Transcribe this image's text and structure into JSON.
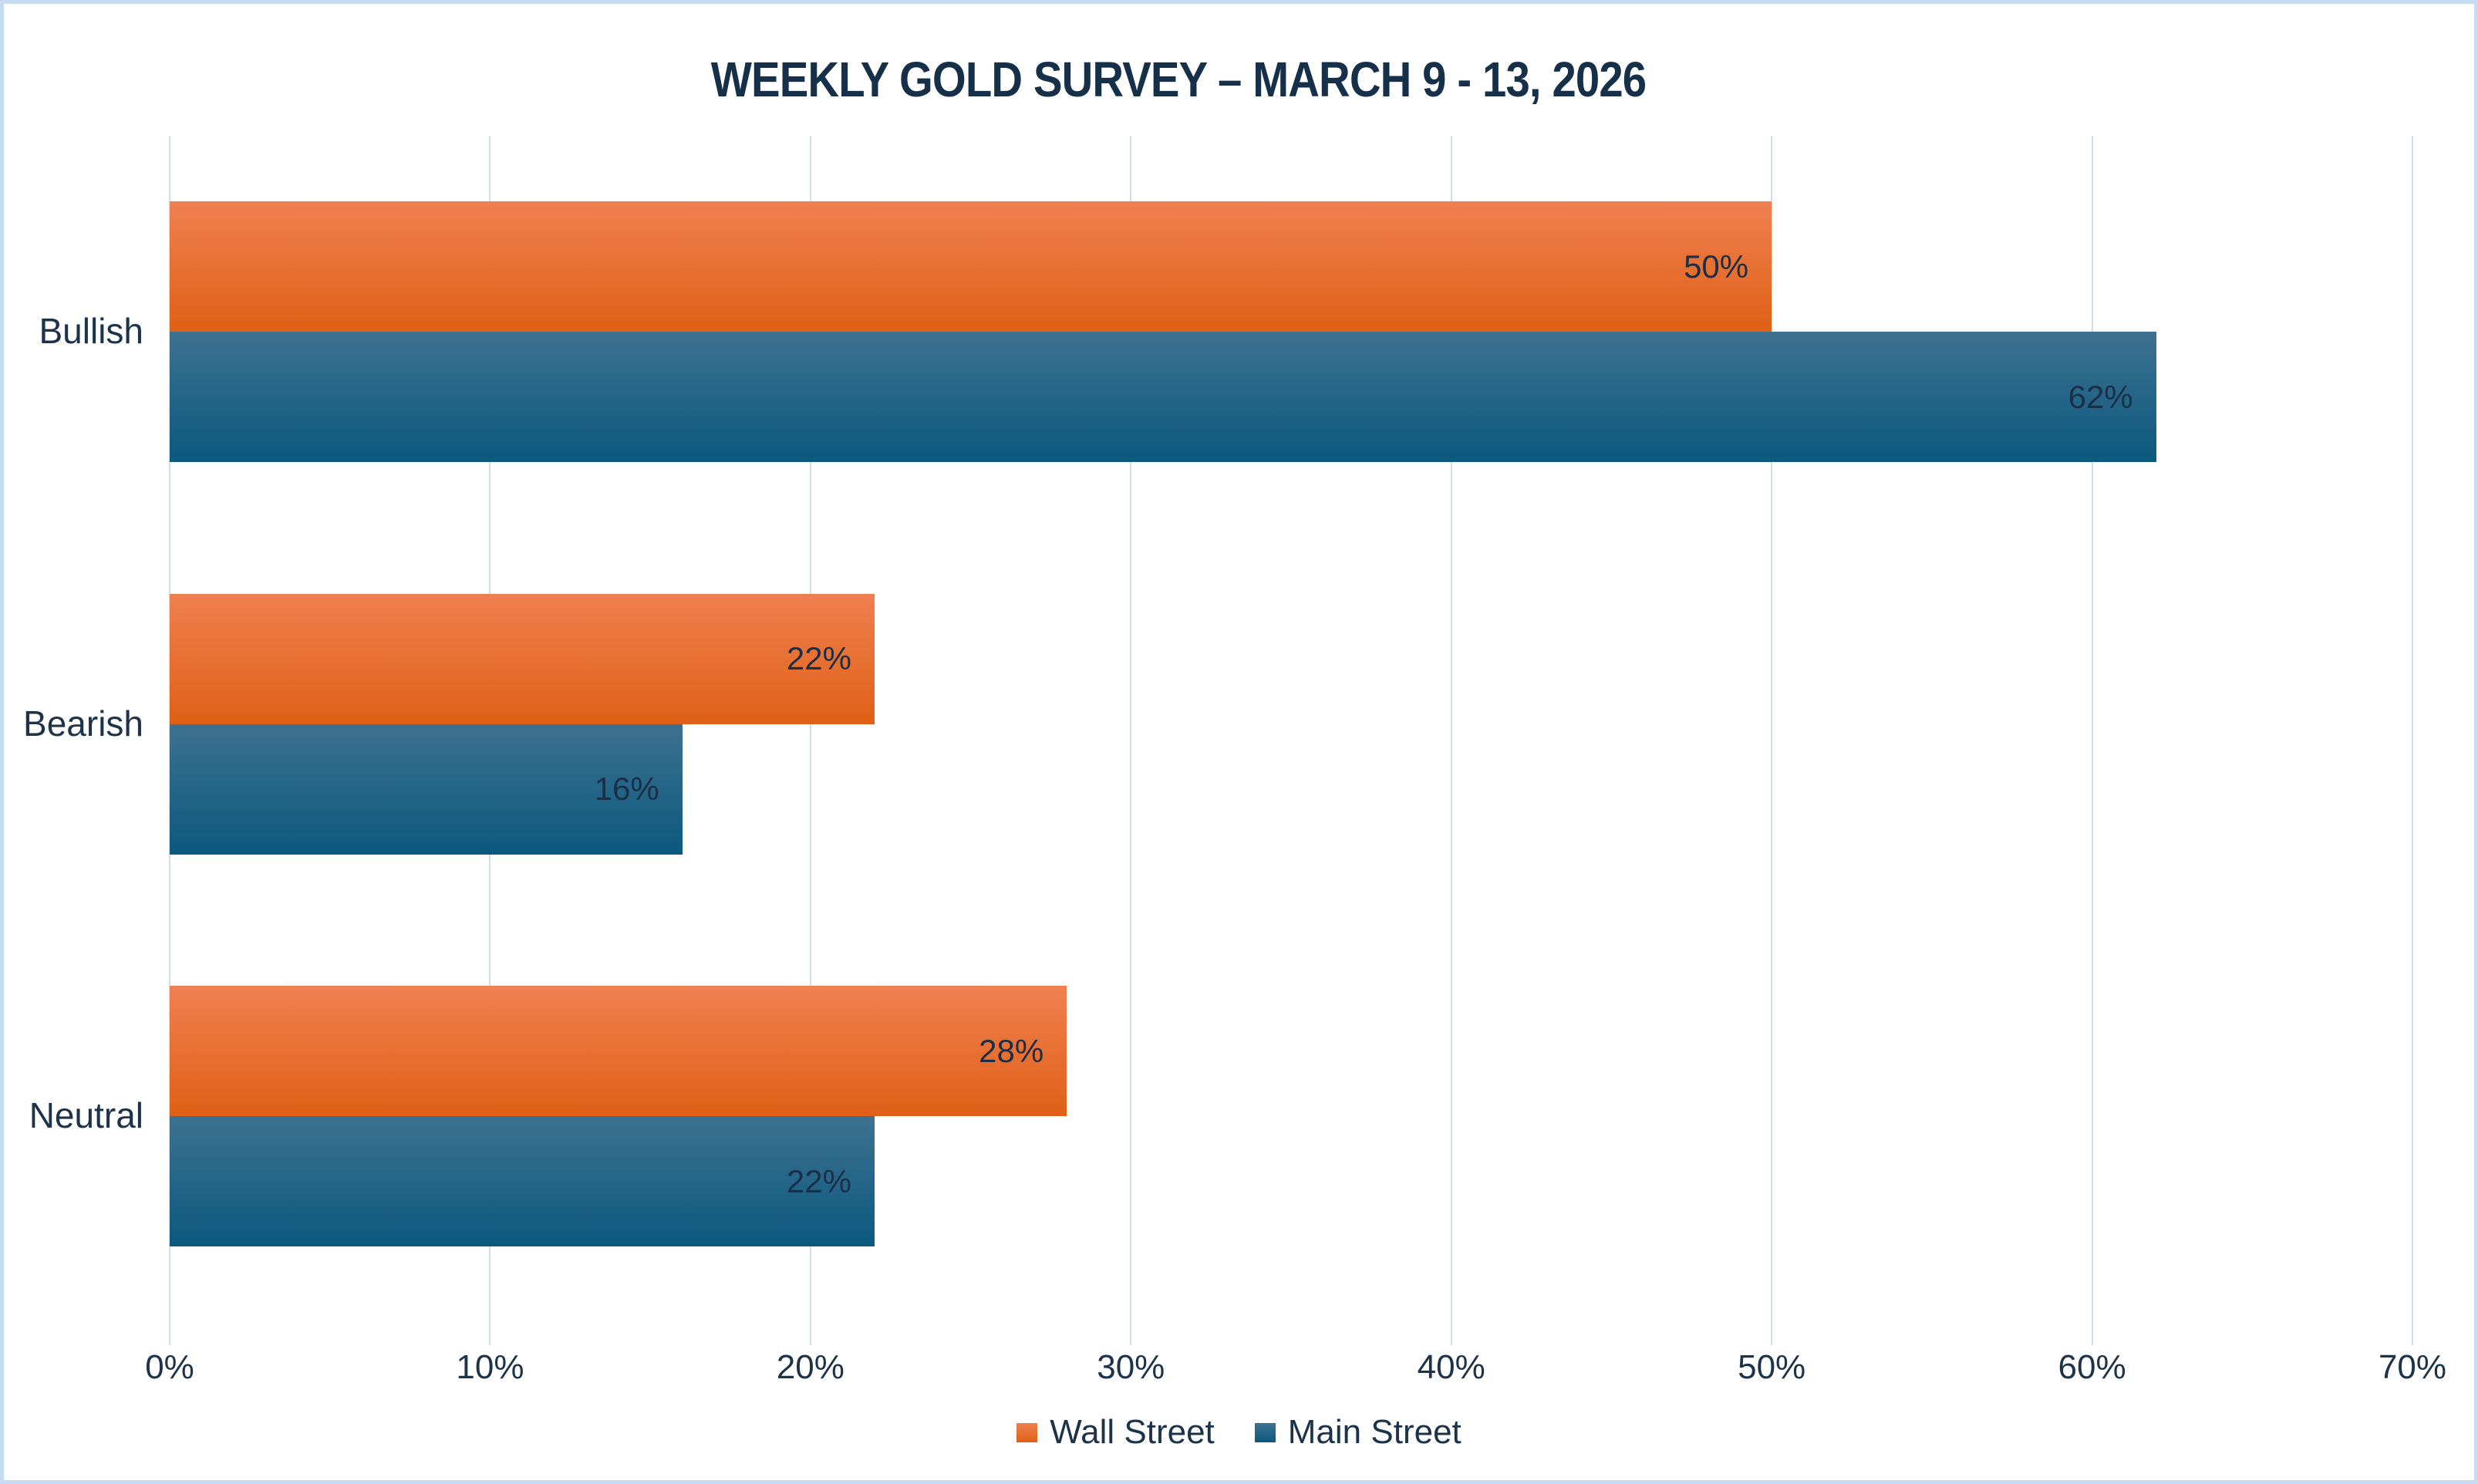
{
  "title": "WEEKLY GOLD SURVEY – MARCH 9 - 13, 2026",
  "chart_data": {
    "type": "bar",
    "orientation": "horizontal",
    "title": "WEEKLY GOLD SURVEY – MARCH 9 - 13, 2026",
    "categories": [
      "Bullish",
      "Bearish",
      "Neutral"
    ],
    "series": [
      {
        "name": "Wall Street",
        "values": [
          50,
          22,
          28
        ],
        "labels": [
          "50%",
          "22%",
          "28%"
        ],
        "color_top": "#ef8051",
        "color_bottom": "#df6015"
      },
      {
        "name": "Main Street",
        "values": [
          62,
          16,
          22
        ],
        "labels": [
          "62%",
          "16%",
          "22%"
        ],
        "color_top": "#3e7191",
        "color_bottom": "#0b597e"
      }
    ],
    "xlim": [
      0,
      70
    ],
    "x_ticks": [
      "0%",
      "10%",
      "20%",
      "30%",
      "40%",
      "50%",
      "60%",
      "70%"
    ],
    "grid": true,
    "legend_position": "bottom"
  },
  "colors": {
    "title_text": "#16304a",
    "label_text": "#1d3349",
    "gridline": "#cbdef2",
    "frame_border": "#c6daf2",
    "background": "#ffffff",
    "wall_street_top": "#ef8051",
    "wall_street_bottom": "#df6015",
    "main_street_top": "#3e7191",
    "main_street_bottom": "#0b597e"
  }
}
